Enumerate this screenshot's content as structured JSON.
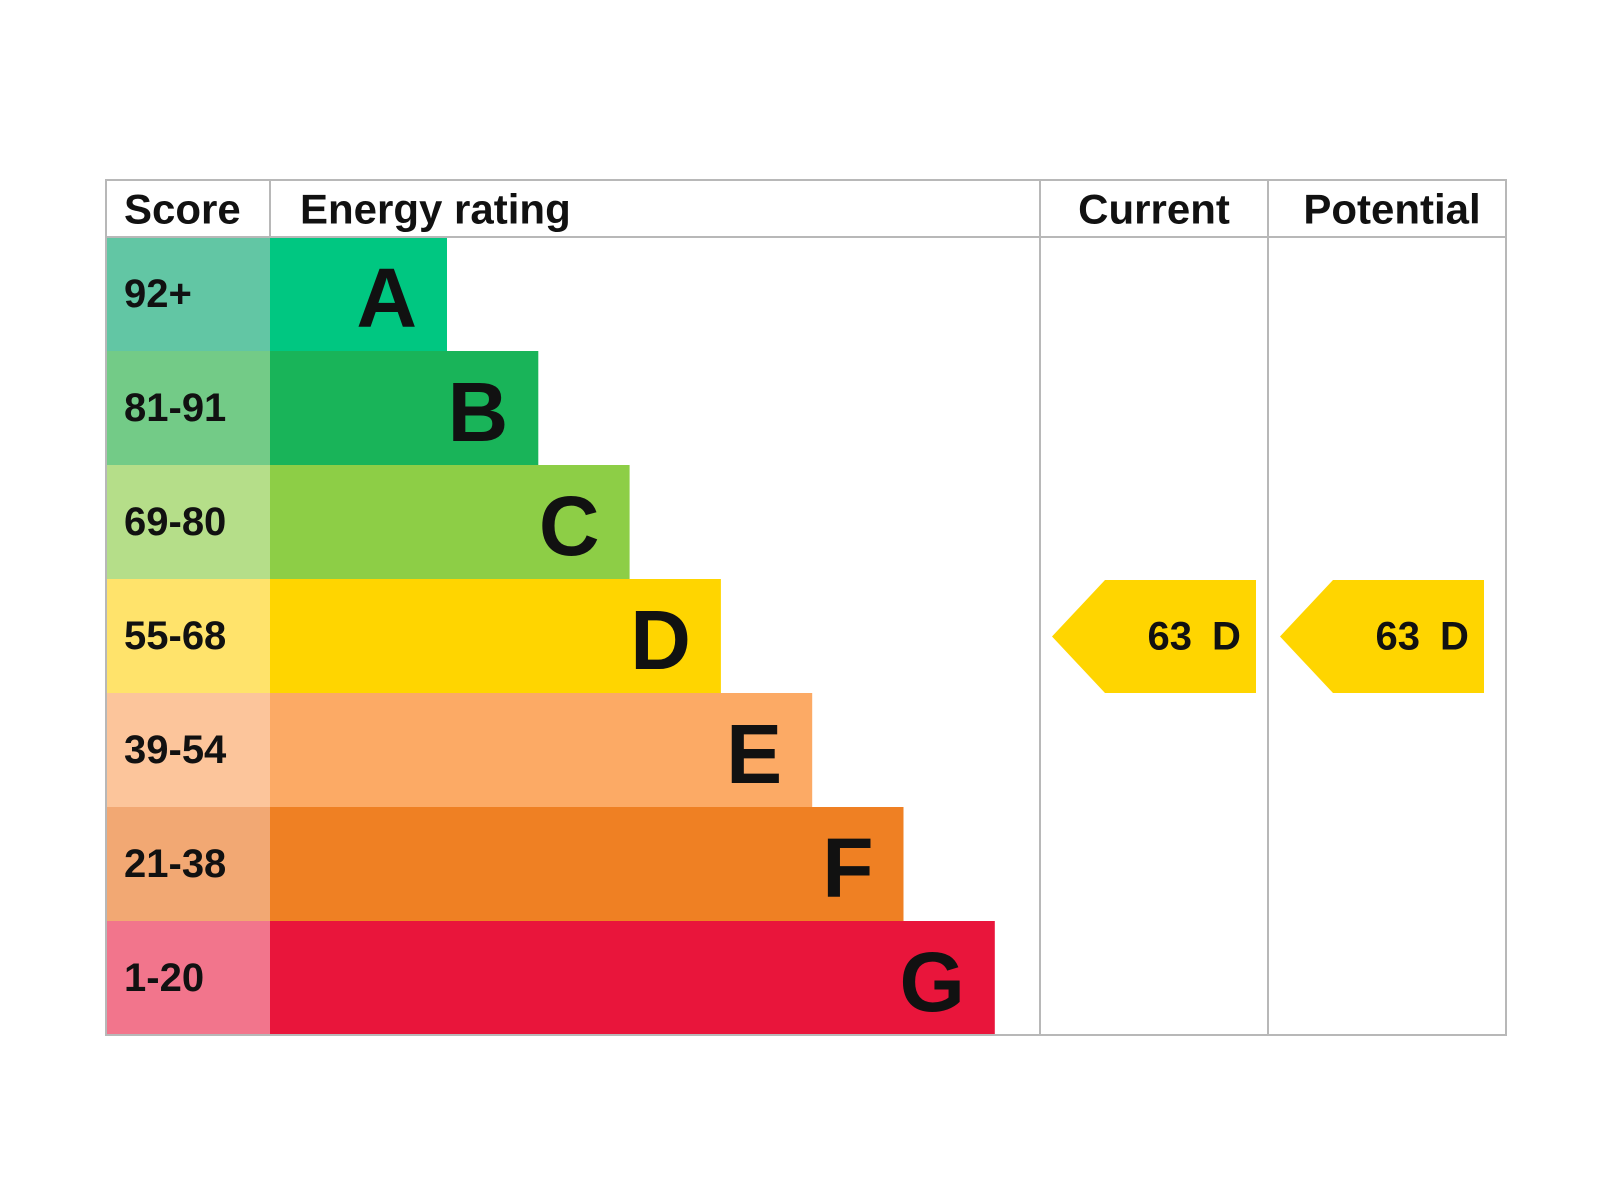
{
  "header": {
    "score": "Score",
    "energy_rating": "Energy rating",
    "current": "Current",
    "potential": "Potential"
  },
  "rows": [
    {
      "score": "92+",
      "band": "A",
      "color": "#00c781",
      "score_color": "#62c6a4"
    },
    {
      "score": "81-91",
      "band": "B",
      "color": "#19b459",
      "score_color": "#73cb87"
    },
    {
      "score": "69-80",
      "band": "C",
      "color": "#8dce46",
      "score_color": "#b5de89"
    },
    {
      "score": "55-68",
      "band": "D",
      "color": "#ffd500",
      "score_color": "#ffe36b"
    },
    {
      "score": "39-54",
      "band": "E",
      "color": "#fcaa65",
      "score_color": "#fcc59b"
    },
    {
      "score": "21-38",
      "band": "F",
      "color": "#ef8023",
      "score_color": "#f2a873"
    },
    {
      "score": "1-20",
      "band": "G",
      "color": "#e9153b",
      "score_color": "#f2758c"
    }
  ],
  "current": {
    "score": 63,
    "band": "D"
  },
  "potential": {
    "score": 63,
    "band": "D"
  }
}
